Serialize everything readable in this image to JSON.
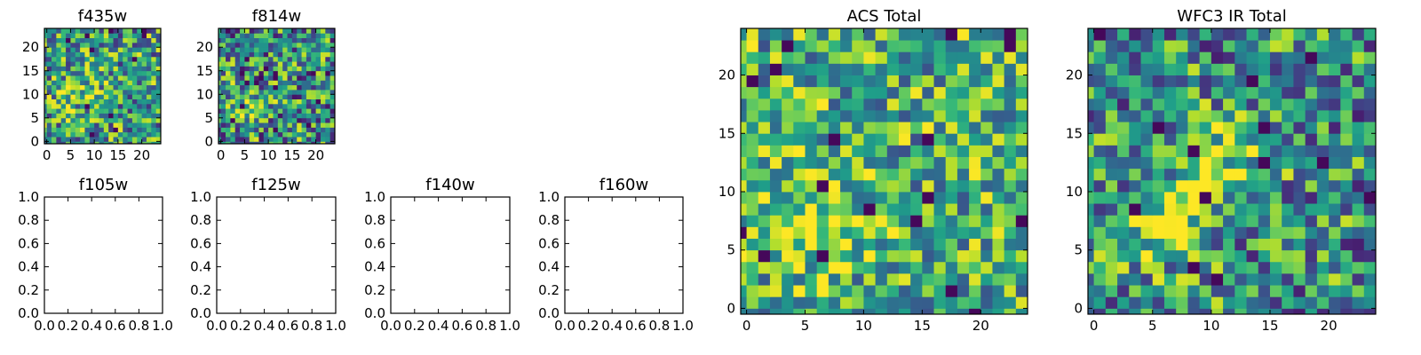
{
  "chart_data": [
    {
      "type": "heatmap",
      "title": "f435w",
      "grid_size": [
        25,
        25
      ],
      "xlim": [
        0,
        24
      ],
      "ylim": [
        0,
        24
      ],
      "xticks": [
        0,
        5,
        10,
        15,
        20
      ],
      "yticks": [
        0,
        5,
        10,
        15,
        20
      ],
      "colormap": "viridis",
      "seed": 11,
      "blob": {
        "x": 8,
        "y": 11,
        "sigma": 3.5,
        "amp": 0.15
      },
      "noise": 0.42,
      "base": 0.55
    },
    {
      "type": "heatmap",
      "title": "f814w",
      "grid_size": [
        25,
        25
      ],
      "xlim": [
        0,
        24
      ],
      "ylim": [
        0,
        24
      ],
      "xticks": [
        0,
        5,
        10,
        15,
        20
      ],
      "yticks": [
        0,
        5,
        10,
        15,
        20
      ],
      "colormap": "viridis",
      "seed": 23,
      "blob": {
        "x": 6,
        "y": 8,
        "sigma": 2.5,
        "amp": 0.35
      },
      "noise": 0.45,
      "base": 0.5
    },
    {
      "type": "empty",
      "title": "f105w",
      "xlim": [
        0,
        1
      ],
      "ylim": [
        0,
        1
      ],
      "xticks": [
        "0.0",
        "0.2",
        "0.4",
        "0.6",
        "0.8",
        "1.0"
      ],
      "yticks": [
        "0.0",
        "0.2",
        "0.4",
        "0.6",
        "0.8",
        "1.0"
      ]
    },
    {
      "type": "empty",
      "title": "f125w",
      "xlim": [
        0,
        1
      ],
      "ylim": [
        0,
        1
      ],
      "xticks": [
        "0.0",
        "0.2",
        "0.4",
        "0.6",
        "0.8",
        "1.0"
      ],
      "yticks": [
        "0.0",
        "0.2",
        "0.4",
        "0.6",
        "0.8",
        "1.0"
      ]
    },
    {
      "type": "empty",
      "title": "f140w",
      "xlim": [
        0,
        1
      ],
      "ylim": [
        0,
        1
      ],
      "xticks": [
        "0.0",
        "0.2",
        "0.4",
        "0.6",
        "0.8",
        "1.0"
      ],
      "yticks": [
        "0.0",
        "0.2",
        "0.4",
        "0.6",
        "0.8",
        "1.0"
      ]
    },
    {
      "type": "empty",
      "title": "f160w",
      "xlim": [
        0,
        1
      ],
      "ylim": [
        0,
        1
      ],
      "xticks": [
        "0.0",
        "0.2",
        "0.4",
        "0.6",
        "0.8",
        "1.0"
      ],
      "yticks": [
        "0.0",
        "0.2",
        "0.4",
        "0.6",
        "0.8",
        "1.0"
      ]
    },
    {
      "type": "heatmap",
      "title": "ACS Total",
      "grid_size": [
        25,
        25
      ],
      "xlim": [
        0,
        24
      ],
      "ylim": [
        0,
        24
      ],
      "xticks": [
        0,
        5,
        10,
        15,
        20
      ],
      "yticks": [
        0,
        5,
        10,
        15,
        20
      ],
      "colormap": "viridis",
      "seed": 37,
      "blob": {
        "x": 6,
        "y": 8,
        "sigma": 3,
        "amp": 0.3
      },
      "noise": 0.38,
      "base": 0.62
    },
    {
      "type": "heatmap",
      "title": "WFC3 IR Total",
      "grid_size": [
        25,
        25
      ],
      "xlim": [
        0,
        24
      ],
      "ylim": [
        0,
        24
      ],
      "xticks": [
        0,
        5,
        10,
        15,
        20
      ],
      "yticks": [
        0,
        5,
        10,
        15,
        20
      ],
      "colormap": "viridis",
      "seed": 53,
      "blob": {
        "x": 7,
        "y": 8,
        "sigma": 2.5,
        "amp": 0.45
      },
      "noise": 0.42,
      "base": 0.5,
      "blob2": {
        "x": 12,
        "y": 13,
        "sigma": 2.5,
        "amp": 0.3
      }
    }
  ]
}
